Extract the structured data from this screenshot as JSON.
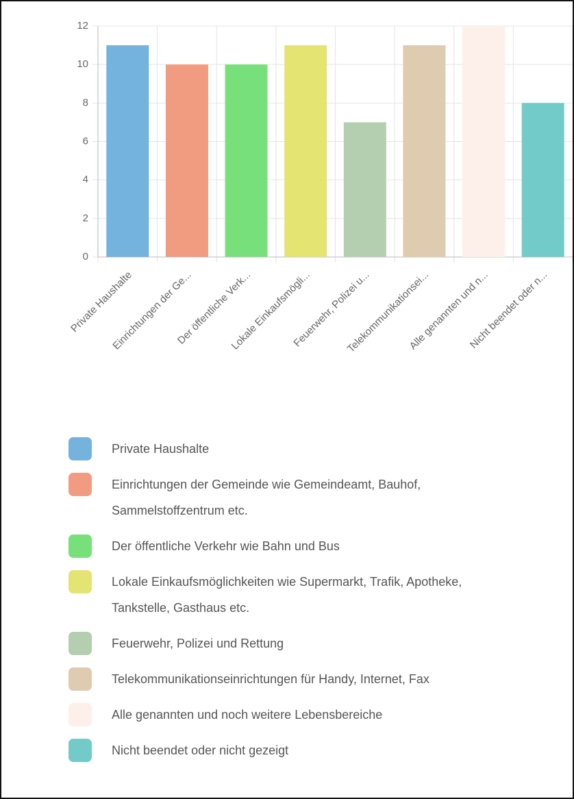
{
  "chart_data": {
    "type": "bar",
    "categories": [
      "Private Haushalte",
      "Einrichtungen der Ge...",
      "Der öffentliche Verk...",
      "Lokale Einkaufsmögli...",
      "Feuerwehr, Polizei u...",
      "Telekommunikationsei...",
      "Alle genannten und n...",
      "Nicht beendet oder n..."
    ],
    "legend_labels": [
      "Private Haushalte",
      "Einrichtungen der Gemeinde wie Gemeindeamt, Bauhof, Sammelstoffzentrum etc.",
      "Der öffentliche Verkehr wie Bahn und Bus",
      "Lokale Einkaufsmöglichkeiten wie Supermarkt, Trafik, Apotheke, Tankstelle, Gasthaus etc.",
      "Feuerwehr, Polizei und Rettung",
      "Telekommunikationseinrichtungen für Handy, Internet, Fax",
      "Alle genannten und noch weitere Lebensbereiche",
      "Nicht beendet oder nicht gezeigt"
    ],
    "values": [
      11,
      10,
      10,
      11,
      7,
      11,
      12,
      8
    ],
    "colors": [
      "#74b3de",
      "#f19c80",
      "#78e07a",
      "#e3e472",
      "#b4cfb0",
      "#dfcbb0",
      "#fdf0ea",
      "#72cbc8"
    ],
    "ylim": [
      0,
      12
    ],
    "yticks": [
      0,
      2,
      4,
      6,
      8,
      10,
      12
    ],
    "grid": true
  }
}
